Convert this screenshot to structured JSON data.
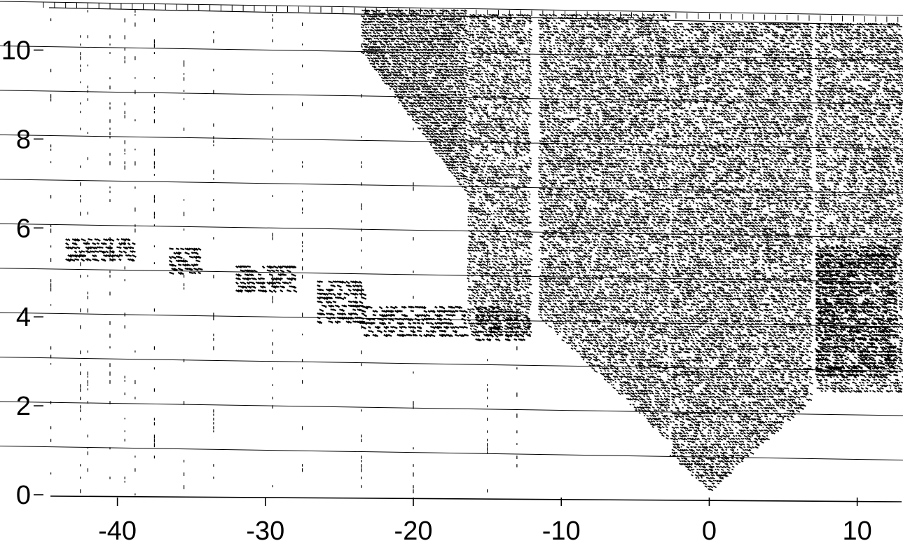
{
  "chart_data": {
    "type": "scatter",
    "title": "",
    "xlabel": "",
    "ylabel": "",
    "xlim": [
      -45,
      13
    ],
    "ylim": [
      0,
      11
    ],
    "grid": true,
    "x_ticks": [
      {
        "value": -40,
        "label": "-40"
      },
      {
        "value": -30,
        "label": "-30"
      },
      {
        "value": -20,
        "label": "-20"
      },
      {
        "value": -10,
        "label": "-10"
      },
      {
        "value": 0,
        "label": "0"
      },
      {
        "value": 10,
        "label": "10"
      }
    ],
    "y_ticks": [
      {
        "value": 0,
        "label": "0"
      },
      {
        "value": 2,
        "label": "2"
      },
      {
        "value": 4,
        "label": "4"
      },
      {
        "value": 6,
        "label": "6"
      },
      {
        "value": 8,
        "label": "8"
      },
      {
        "value": 10,
        "label": "10"
      }
    ],
    "colors": {
      "ink": "#000000",
      "grid": "#000000",
      "background": "#ffffff"
    },
    "regions": [
      {
        "name": "",
        "x": [
          -23.5,
          -16.5
        ],
        "y_top": 10.9,
        "y_bottom": 6.8,
        "density": 0.85
      },
      {
        "name": "",
        "x": [
          -16.3,
          -12.2
        ],
        "y_top": 10.8,
        "y_bottom": 3.6,
        "density": 0.55
      },
      {
        "name": "",
        "x": [
          -11.5,
          -2.8
        ],
        "y_top": 10.8,
        "y_bottom": 1.2,
        "density": 0.6
      },
      {
        "name": "",
        "x": [
          -2.6,
          6.8
        ],
        "y_top": 10.6,
        "y_bottom": 0.1,
        "density": 0.6
      },
      {
        "name": "",
        "x": [
          7.2,
          13
        ],
        "y_top": 10.6,
        "y_bottom": 2.3,
        "density": 0.55
      }
    ],
    "bands": [
      {
        "x": [
          -43.5,
          -39.0
        ],
        "y": [
          5.3,
          5.8
        ]
      },
      {
        "x": [
          -36.5,
          -34.5
        ],
        "y": [
          5.0,
          5.6
        ]
      },
      {
        "x": [
          -32.0,
          -28.0
        ],
        "y": [
          4.6,
          5.2
        ]
      },
      {
        "x": [
          -26.5,
          -23.5
        ],
        "y": [
          3.9,
          4.8
        ]
      },
      {
        "x": [
          -23.5,
          -16.5
        ],
        "y": [
          3.6,
          4.3
        ]
      },
      {
        "x": [
          -15.8,
          -14.2
        ],
        "y": [
          3.5,
          4.3
        ]
      },
      {
        "x": [
          -13.8,
          -12.2
        ],
        "y": [
          3.5,
          4.2
        ]
      },
      {
        "x": [
          7.2,
          12.5
        ],
        "y": [
          2.7,
          5.6
        ]
      }
    ]
  }
}
